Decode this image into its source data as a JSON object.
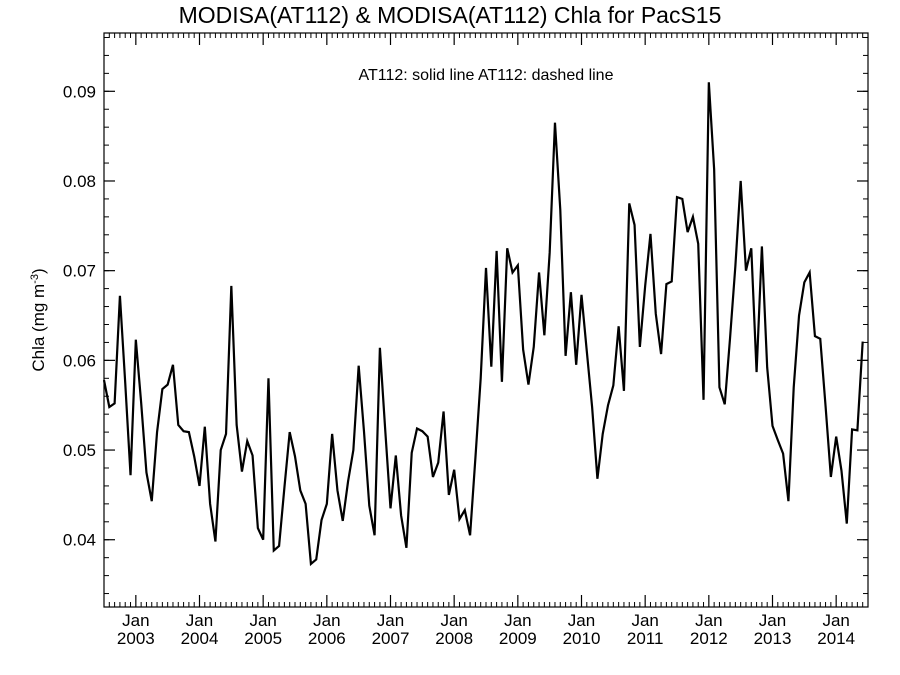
{
  "chart_data": {
    "type": "line",
    "title": "MODISA(AT112) & MODISA(AT112)  Chla for PacS15",
    "legend_text": "AT112: solid line   AT112: dashed line",
    "legend_placement": "top-center",
    "ylabel": "Chla (mg m",
    "ylabel_superscript": "-3",
    "ylabel_close": ")",
    "ylim": [
      0.0325,
      0.0965
    ],
    "xlim": [
      "2002-07",
      "2014-07"
    ],
    "grid": false,
    "yticks": [
      {
        "value": 0.04,
        "label": "0.04"
      },
      {
        "value": 0.05,
        "label": "0.05"
      },
      {
        "value": 0.06,
        "label": "0.06"
      },
      {
        "value": 0.07,
        "label": "0.07"
      },
      {
        "value": 0.08,
        "label": "0.08"
      },
      {
        "value": 0.09,
        "label": "0.09"
      }
    ],
    "xticks": [
      {
        "date": "2003-01",
        "month": "Jan",
        "year": "2003"
      },
      {
        "date": "2004-01",
        "month": "Jan",
        "year": "2004"
      },
      {
        "date": "2005-01",
        "month": "Jan",
        "year": "2005"
      },
      {
        "date": "2006-01",
        "month": "Jan",
        "year": "2006"
      },
      {
        "date": "2007-01",
        "month": "Jan",
        "year": "2007"
      },
      {
        "date": "2008-01",
        "month": "Jan",
        "year": "2008"
      },
      {
        "date": "2009-01",
        "month": "Jan",
        "year": "2009"
      },
      {
        "date": "2010-01",
        "month": "Jan",
        "year": "2010"
      },
      {
        "date": "2011-01",
        "month": "Jan",
        "year": "2011"
      },
      {
        "date": "2012-01",
        "month": "Jan",
        "year": "2012"
      },
      {
        "date": "2013-01",
        "month": "Jan",
        "year": "2013"
      },
      {
        "date": "2014-01",
        "month": "Jan",
        "year": "2014"
      }
    ],
    "series": [
      {
        "style": "solid",
        "color": "#000000",
        "points": [
          [
            "2002-07",
            0.0578
          ],
          [
            "2002-08",
            0.0548
          ],
          [
            "2002-09",
            0.0552
          ],
          [
            "2002-10",
            0.0672
          ],
          [
            "2002-11",
            0.0575
          ],
          [
            "2002-12",
            0.0472
          ],
          [
            "2003-01",
            0.0623
          ],
          [
            "2003-02",
            0.0553
          ],
          [
            "2003-03",
            0.0475
          ],
          [
            "2003-04",
            0.0443
          ],
          [
            "2003-05",
            0.052
          ],
          [
            "2003-06",
            0.0568
          ],
          [
            "2003-07",
            0.0573
          ],
          [
            "2003-08",
            0.0595
          ],
          [
            "2003-09",
            0.0528
          ],
          [
            "2003-10",
            0.0521
          ],
          [
            "2003-11",
            0.052
          ],
          [
            "2003-12",
            0.0493
          ],
          [
            "2004-01",
            0.046
          ],
          [
            "2004-02",
            0.0526
          ],
          [
            "2004-03",
            0.044
          ],
          [
            "2004-04",
            0.0398
          ],
          [
            "2004-05",
            0.05
          ],
          [
            "2004-06",
            0.0518
          ],
          [
            "2004-07",
            0.0683
          ],
          [
            "2004-08",
            0.0528
          ],
          [
            "2004-09",
            0.0476
          ],
          [
            "2004-10",
            0.051
          ],
          [
            "2004-11",
            0.0494
          ],
          [
            "2004-12",
            0.0413
          ],
          [
            "2005-01",
            0.04
          ],
          [
            "2005-02",
            0.058
          ],
          [
            "2005-03",
            0.0388
          ],
          [
            "2005-04",
            0.0393
          ],
          [
            "2005-05",
            0.0458
          ],
          [
            "2005-06",
            0.052
          ],
          [
            "2005-07",
            0.0493
          ],
          [
            "2005-08",
            0.0455
          ],
          [
            "2005-09",
            0.044
          ],
          [
            "2005-10",
            0.0373
          ],
          [
            "2005-11",
            0.0378
          ],
          [
            "2005-12",
            0.0422
          ],
          [
            "2006-01",
            0.044
          ],
          [
            "2006-02",
            0.0518
          ],
          [
            "2006-03",
            0.0455
          ],
          [
            "2006-04",
            0.0421
          ],
          [
            "2006-05",
            0.0465
          ],
          [
            "2006-06",
            0.05
          ],
          [
            "2006-07",
            0.0594
          ],
          [
            "2006-08",
            0.0521
          ],
          [
            "2006-09",
            0.0438
          ],
          [
            "2006-10",
            0.0405
          ],
          [
            "2006-11",
            0.0614
          ],
          [
            "2006-12",
            0.0523
          ],
          [
            "2007-01",
            0.0435
          ],
          [
            "2007-02",
            0.0494
          ],
          [
            "2007-03",
            0.0427
          ],
          [
            "2007-04",
            0.0391
          ],
          [
            "2007-05",
            0.0497
          ],
          [
            "2007-06",
            0.0524
          ],
          [
            "2007-07",
            0.0521
          ],
          [
            "2007-08",
            0.0515
          ],
          [
            "2007-09",
            0.047
          ],
          [
            "2007-10",
            0.0486
          ],
          [
            "2007-11",
            0.0543
          ],
          [
            "2007-12",
            0.045
          ],
          [
            "2008-01",
            0.0478
          ],
          [
            "2008-02",
            0.0423
          ],
          [
            "2008-03",
            0.0433
          ],
          [
            "2008-04",
            0.0405
          ],
          [
            "2008-05",
            0.0491
          ],
          [
            "2008-06",
            0.058
          ],
          [
            "2008-07",
            0.0703
          ],
          [
            "2008-08",
            0.0593
          ],
          [
            "2008-09",
            0.0722
          ],
          [
            "2008-10",
            0.0576
          ],
          [
            "2008-11",
            0.0725
          ],
          [
            "2008-12",
            0.0698
          ],
          [
            "2009-01",
            0.0706
          ],
          [
            "2009-02",
            0.0612
          ],
          [
            "2009-03",
            0.0573
          ],
          [
            "2009-04",
            0.0615
          ],
          [
            "2009-05",
            0.0698
          ],
          [
            "2009-06",
            0.0628
          ],
          [
            "2009-07",
            0.072
          ],
          [
            "2009-08",
            0.0865
          ],
          [
            "2009-09",
            0.0768
          ],
          [
            "2009-10",
            0.0605
          ],
          [
            "2009-11",
            0.0676
          ],
          [
            "2009-12",
            0.0595
          ],
          [
            "2010-01",
            0.0673
          ],
          [
            "2010-02",
            0.061
          ],
          [
            "2010-03",
            0.0548
          ],
          [
            "2010-04",
            0.0468
          ],
          [
            "2010-05",
            0.0518
          ],
          [
            "2010-06",
            0.055
          ],
          [
            "2010-07",
            0.0572
          ],
          [
            "2010-08",
            0.0638
          ],
          [
            "2010-09",
            0.0566
          ],
          [
            "2010-10",
            0.0775
          ],
          [
            "2010-11",
            0.0751
          ],
          [
            "2010-12",
            0.0615
          ],
          [
            "2011-01",
            0.0683
          ],
          [
            "2011-02",
            0.0741
          ],
          [
            "2011-03",
            0.0652
          ],
          [
            "2011-04",
            0.0607
          ],
          [
            "2011-05",
            0.0685
          ],
          [
            "2011-06",
            0.0688
          ],
          [
            "2011-07",
            0.0782
          ],
          [
            "2011-08",
            0.078
          ],
          [
            "2011-09",
            0.0743
          ],
          [
            "2011-10",
            0.076
          ],
          [
            "2011-11",
            0.073
          ],
          [
            "2011-12",
            0.0556
          ],
          [
            "2012-01",
            0.091
          ],
          [
            "2012-02",
            0.0813
          ],
          [
            "2012-03",
            0.057
          ],
          [
            "2012-04",
            0.0551
          ],
          [
            "2012-05",
            0.0625
          ],
          [
            "2012-06",
            0.0705
          ],
          [
            "2012-07",
            0.08
          ],
          [
            "2012-08",
            0.07
          ],
          [
            "2012-09",
            0.0725
          ],
          [
            "2012-10",
            0.0587
          ],
          [
            "2012-11",
            0.0727
          ],
          [
            "2012-12",
            0.0592
          ],
          [
            "2013-01",
            0.0527
          ],
          [
            "2013-02",
            0.0511
          ],
          [
            "2013-03",
            0.0496
          ],
          [
            "2013-04",
            0.0443
          ],
          [
            "2013-05",
            0.057
          ],
          [
            "2013-06",
            0.065
          ],
          [
            "2013-07",
            0.0687
          ],
          [
            "2013-08",
            0.0698
          ],
          [
            "2013-09",
            0.0627
          ],
          [
            "2013-10",
            0.0624
          ],
          [
            "2013-11",
            0.0549
          ],
          [
            "2013-12",
            0.047
          ],
          [
            "2014-01",
            0.0515
          ],
          [
            "2014-02",
            0.0477
          ],
          [
            "2014-03",
            0.0418
          ],
          [
            "2014-04",
            0.0523
          ],
          [
            "2014-05",
            0.0522
          ],
          [
            "2014-06",
            0.0621
          ]
        ]
      }
    ]
  }
}
